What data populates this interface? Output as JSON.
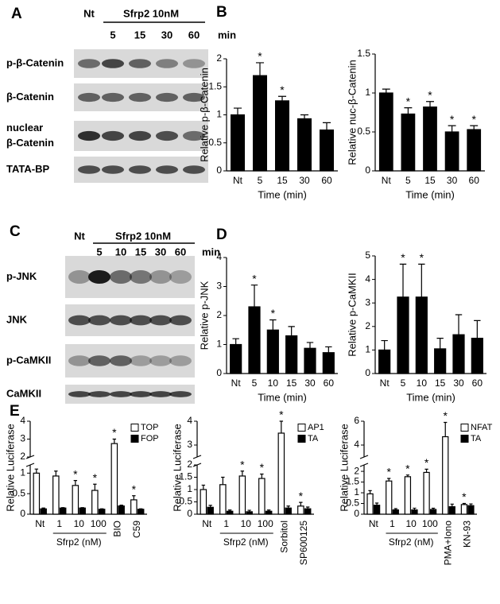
{
  "panel_labels": [
    "A",
    "B",
    "C",
    "D",
    "E"
  ],
  "blots": [
    {
      "control": "Nt",
      "treatment": "Sfrp2 10nM",
      "times": [
        "5",
        "15",
        "30",
        "60"
      ],
      "unit": "min",
      "rows": [
        [
          "p-β-Catenin"
        ],
        [
          "β-Catenin"
        ],
        [
          "nuclear",
          "β-Catenin"
        ],
        [
          "TATA-BP"
        ]
      ]
    },
    {
      "control": "Nt",
      "treatment": "Sfrp2 10nM",
      "times": [
        "5",
        "10",
        "15",
        "30",
        "60"
      ],
      "unit": "min",
      "rows": [
        [
          "p-JNK"
        ],
        [
          "JNK"
        ],
        [
          "p-CaMKII"
        ],
        [
          "CaMKII"
        ]
      ]
    }
  ],
  "chart_data": [
    {
      "type": "bar",
      "ylabel": "Relative p-β-Catenin",
      "xlabel": "Time (min)",
      "categories": [
        "Nt",
        "5",
        "15",
        "30",
        "60"
      ],
      "values": [
        1.0,
        1.7,
        1.25,
        0.93,
        0.73
      ],
      "errors": [
        0.12,
        0.23,
        0.08,
        0.07,
        0.13
      ],
      "significance": [
        null,
        "*",
        "*",
        null,
        null
      ],
      "color": "#000000",
      "ylim": [
        0,
        2
      ],
      "yticks": [
        0,
        0.5,
        1,
        1.5,
        2
      ]
    },
    {
      "type": "bar",
      "ylabel": "Relative nuc-β-Catenin",
      "xlabel": "Time (min)",
      "categories": [
        "Nt",
        "5",
        "15",
        "30",
        "60"
      ],
      "values": [
        1.0,
        0.73,
        0.82,
        0.5,
        0.53
      ],
      "errors": [
        0.05,
        0.08,
        0.07,
        0.08,
        0.05
      ],
      "significance": [
        null,
        "*",
        "*",
        "*",
        "*"
      ],
      "color": "#000000",
      "ylim": [
        0,
        1.5
      ],
      "yticks": [
        0,
        0.5,
        1,
        1.5
      ]
    },
    {
      "type": "bar",
      "ylabel": "Relative p-JNK",
      "xlabel": "Time (min)",
      "categories": [
        "Nt",
        "5",
        "10",
        "15",
        "30",
        "60"
      ],
      "values": [
        1.0,
        2.3,
        1.5,
        1.3,
        0.87,
        0.72
      ],
      "errors": [
        0.2,
        0.75,
        0.35,
        0.32,
        0.2,
        0.2
      ],
      "significance": [
        null,
        "*",
        "*",
        null,
        null,
        null
      ],
      "color": "#000000",
      "ylim": [
        0,
        4
      ],
      "yticks": [
        0,
        1,
        2,
        3,
        4
      ]
    },
    {
      "type": "bar",
      "ylabel": "Relative p-CaMKII",
      "xlabel": "Time (min)",
      "categories": [
        "Nt",
        "5",
        "10",
        "15",
        "30",
        "60"
      ],
      "values": [
        1.0,
        3.25,
        3.25,
        1.05,
        1.65,
        1.5
      ],
      "errors": [
        0.4,
        1.4,
        1.4,
        0.45,
        0.85,
        0.75
      ],
      "significance": [
        null,
        "*",
        "*",
        null,
        null,
        null
      ],
      "color": "#000000",
      "ylim": [
        0,
        5
      ],
      "yticks": [
        0,
        1,
        2,
        3,
        4,
        5
      ]
    },
    {
      "type": "bar",
      "ylabel": "Relative Luciferase",
      "group_label": "Sfrp2 (nM)",
      "categories": [
        "Nt",
        "1",
        "10",
        "100",
        "BIO",
        "C59"
      ],
      "series": [
        {
          "name": "TOP",
          "color": "#ffffff",
          "values": [
            1.0,
            0.93,
            0.7,
            0.58,
            2.75,
            0.35
          ],
          "errors": [
            0.1,
            0.12,
            0.12,
            0.15,
            0.25,
            0.1
          ],
          "significance": [
            null,
            null,
            "*",
            "*",
            "*",
            "*"
          ]
        },
        {
          "name": "FOP",
          "color": "#000000",
          "values": [
            0.13,
            0.15,
            0.15,
            0.12,
            0.2,
            0.12
          ],
          "errors": [
            0.02,
            0.01,
            0.01,
            0.01,
            0.02,
            0.01
          ]
        }
      ],
      "ylim": [
        0,
        4
      ],
      "axis_break": [
        1.2,
        2
      ],
      "yticks": [
        0,
        0.5,
        1,
        2,
        3,
        4
      ],
      "legend": "upper right"
    },
    {
      "type": "bar",
      "ylabel": "Relative Luciferase",
      "group_label": "Sfrp2 (nM)",
      "categories": [
        "Nt",
        "1",
        "10",
        "100",
        "Sorbitol",
        "SP600125"
      ],
      "series": [
        {
          "name": "AP1",
          "color": "#ffffff",
          "values": [
            1.0,
            1.2,
            1.55,
            1.45,
            3.5,
            0.33
          ],
          "errors": [
            0.18,
            0.3,
            0.2,
            0.18,
            0.5,
            0.15
          ],
          "significance": [
            null,
            null,
            "*",
            "*",
            "*",
            "*"
          ]
        },
        {
          "name": "TA",
          "color": "#000000",
          "values": [
            0.28,
            0.12,
            0.1,
            0.12,
            0.25,
            0.22
          ],
          "errors": [
            0.08,
            0.05,
            0.06,
            0.05,
            0.08,
            0.07
          ]
        }
      ],
      "ylim": [
        0,
        4
      ],
      "axis_break": [
        2,
        2.5
      ],
      "yticks": [
        0,
        0.5,
        1,
        1.5,
        2,
        3,
        4
      ],
      "legend": "upper right"
    },
    {
      "type": "bar",
      "ylabel": "Relative Luciferase",
      "group_label": "Sfrp2 (nM)",
      "categories": [
        "Nt",
        "1",
        "10",
        "100",
        "PMA+Iono",
        "KN-93"
      ],
      "series": [
        {
          "name": "NFAT",
          "color": "#ffffff",
          "values": [
            0.95,
            1.55,
            1.75,
            1.95,
            4.7,
            0.45
          ],
          "errors": [
            0.15,
            0.12,
            0.08,
            0.15,
            1.2,
            0.05
          ],
          "significance": [
            null,
            "*",
            "*",
            "*",
            "*",
            "*"
          ]
        },
        {
          "name": "TA",
          "color": "#000000",
          "values": [
            0.42,
            0.2,
            0.2,
            0.22,
            0.35,
            0.4
          ],
          "errors": [
            0.1,
            0.06,
            0.08,
            0.06,
            0.12,
            0.08
          ]
        }
      ],
      "ylim": [
        0,
        6
      ],
      "axis_break": [
        2.3,
        3
      ],
      "yticks": [
        0,
        0.5,
        1,
        1.5,
        2,
        4,
        6
      ],
      "legend": "upper right"
    }
  ]
}
